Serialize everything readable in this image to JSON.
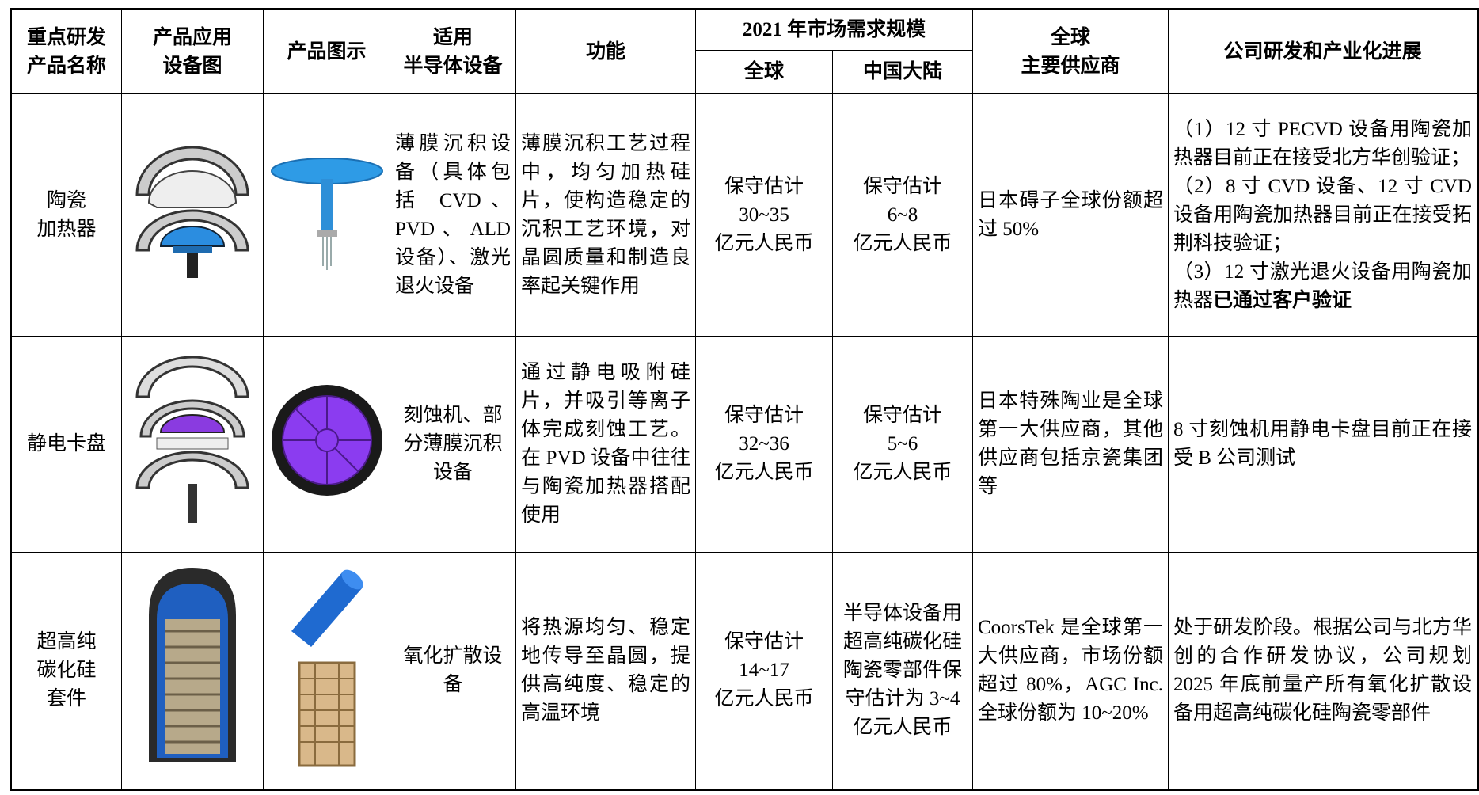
{
  "table": {
    "header": {
      "name": [
        "重点研发",
        "产品名称"
      ],
      "equipment_image": [
        "产品应用",
        "设备图"
      ],
      "product_image": [
        "产品图示"
      ],
      "device": [
        "适用",
        "半导体设备"
      ],
      "function": [
        "功能"
      ],
      "market": "2021 年市场需求规模",
      "global": "全球",
      "china": "中国大陆",
      "suppliers": [
        "全球",
        "主要供应商"
      ],
      "progress": [
        "公司研发和产业化进展"
      ]
    },
    "rows": [
      {
        "name": [
          "陶瓷",
          "加热器"
        ],
        "device": "薄膜沉积设备（具体包括 CVD、PVD、ALD 设备）、激光退火设备",
        "function": "薄膜沉积工艺过程中，均匀加热硅片，使构造稳定的沉积工艺环境，对晶圆质量和制造良率起关键作用",
        "global": [
          "保守估计",
          "30~35",
          "亿元人民币"
        ],
        "china": [
          "保守估计",
          "6~8",
          "亿元人民币"
        ],
        "suppliers": "日本碍子全球份额超过 50%",
        "progress": [
          "（1）12 寸 PECVD 设备用陶瓷加热器目前正在接受北方华创验证；",
          "（2）8 寸 CVD 设备、12 寸 CVD 设备用陶瓷加热器目前正在接受拓荆科技验证；",
          "（3）12 寸激光退火设备用陶瓷加热器"
        ],
        "progress_emphasis": "已通过客户验证"
      },
      {
        "name": [
          "静电卡盘"
        ],
        "device": "刻蚀机、部分薄膜沉积设备",
        "function": "通过静电吸附硅片，并吸引等离子体完成刻蚀工艺。在 PVD 设备中往往与陶瓷加热器搭配使用",
        "global": [
          "保守估计",
          "32~36",
          "亿元人民币"
        ],
        "china": [
          "保守估计",
          "5~6",
          "亿元人民币"
        ],
        "suppliers": "日本特殊陶业是全球第一大供应商，其他供应商包括京瓷集团等",
        "progress": [
          "8 寸刻蚀机用静电卡盘目前正在接受 B 公司测试"
        ]
      },
      {
        "name": [
          "超高纯",
          "碳化硅",
          "套件"
        ],
        "device": "氧化扩散设备",
        "function": "将热源均匀、稳定地传导至晶圆，提供高纯度、稳定的高温环境",
        "global": [
          "保守估计",
          "14~17",
          "亿元人民币"
        ],
        "china": "半导体设备用超高纯碳化硅陶瓷零部件保守估计为 3~4 亿元人民币",
        "suppliers": "CoorsTek 是全球第一大供应商，市场份额超过 80%，AGC Inc.全球份额为 10~20%",
        "progress": [
          "处于研发阶段。根据公司与北方华创的合作研发协议，公司规划 2025 年底前量产所有氧化扩散设备用超高纯碳化硅陶瓷零部件"
        ]
      }
    ]
  }
}
